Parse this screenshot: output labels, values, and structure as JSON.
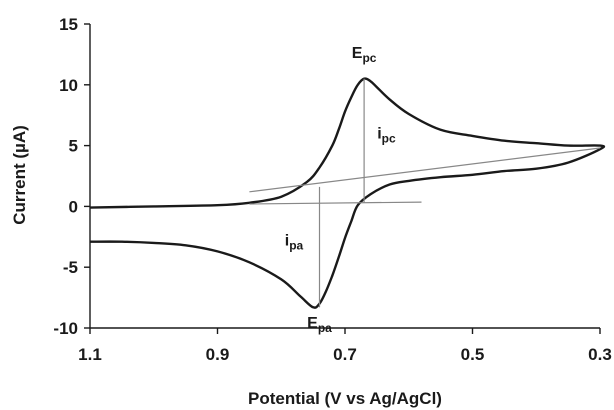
{
  "chart_data": {
    "type": "line",
    "xlabel": "Potential (V vs Ag/AgCl)",
    "ylabel": "Current (µA)",
    "xlim": [
      1.1,
      0.3
    ],
    "ylim": [
      -10,
      15
    ],
    "x_reversed": true,
    "x_ticks": [
      1.1,
      0.9,
      0.7,
      0.5,
      0.3
    ],
    "x_tick_labels": [
      "1.1",
      "0.9",
      "0.7",
      "0.5",
      "0.3"
    ],
    "y_ticks": [
      -10,
      -5,
      0,
      5,
      10,
      15
    ],
    "y_tick_labels": [
      "-10",
      "-5",
      "0",
      "5",
      "10",
      "15"
    ],
    "grid": false,
    "series": [
      {
        "role": "curve",
        "color": "#1a1a1a",
        "x": [
          1.1,
          1.0,
          0.9,
          0.85,
          0.8,
          0.76,
          0.74,
          0.72,
          0.71,
          0.7,
          0.69,
          0.68,
          0.67,
          0.66,
          0.65,
          0.63,
          0.6,
          0.55,
          0.5,
          0.45,
          0.4,
          0.35,
          0.3,
          0.3,
          0.35,
          0.4,
          0.45,
          0.5,
          0.55,
          0.6,
          0.63,
          0.66,
          0.68,
          0.69,
          0.7,
          0.71,
          0.72,
          0.73,
          0.74,
          0.75,
          0.77,
          0.8,
          0.85,
          0.9,
          0.95,
          1.0,
          1.05,
          1.1
        ],
        "y": [
          -0.1,
          0.0,
          0.1,
          0.3,
          0.8,
          2.0,
          3.2,
          5.0,
          6.3,
          7.8,
          9.0,
          10.0,
          10.5,
          10.3,
          9.8,
          8.8,
          7.6,
          6.3,
          5.8,
          5.4,
          5.2,
          5.0,
          5.0,
          4.7,
          3.6,
          3.1,
          2.9,
          2.6,
          2.4,
          2.1,
          1.8,
          1.0,
          0.1,
          -1.2,
          -2.6,
          -4.2,
          -5.7,
          -7.0,
          -8.0,
          -8.3,
          -7.4,
          -6.0,
          -4.6,
          -3.7,
          -3.2,
          -3.0,
          -2.9,
          -2.9
        ]
      },
      {
        "role": "baseline",
        "color": "#888888",
        "x": [
          0.85,
          0.3
        ],
        "y": [
          1.2,
          4.8
        ]
      },
      {
        "role": "baseline",
        "color": "#888888",
        "x": [
          0.85,
          0.58
        ],
        "y": [
          0.2,
          0.35
        ]
      },
      {
        "role": "peak-marker",
        "color": "#888888",
        "x": [
          0.67,
          0.67
        ],
        "y": [
          10.5,
          0.3
        ]
      },
      {
        "role": "peak-marker",
        "color": "#888888",
        "x": [
          0.74,
          0.74
        ],
        "y": [
          1.6,
          -8.3
        ]
      }
    ],
    "annotations": [
      {
        "text": "E",
        "sub": "pc",
        "x": 0.67,
        "y": 12.2
      },
      {
        "text": "i",
        "sub": "pc",
        "x": 0.635,
        "y": 5.6
      },
      {
        "text": "i",
        "sub": "pa",
        "x": 0.78,
        "y": -3.2
      },
      {
        "text": "E",
        "sub": "pa",
        "x": 0.74,
        "y": -10.0
      }
    ]
  }
}
